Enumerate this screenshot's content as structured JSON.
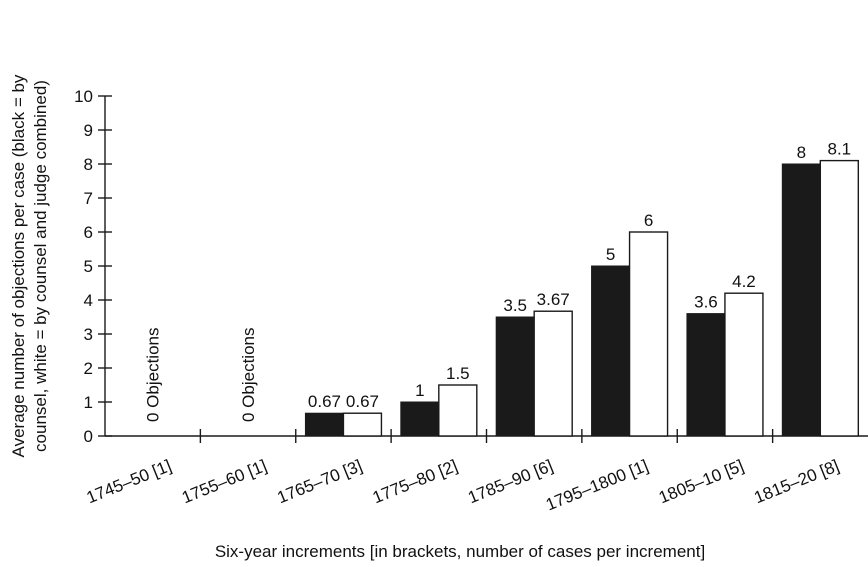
{
  "chart_data": {
    "type": "bar",
    "categories": [
      "1745–50 [1]",
      "1755–60 [1]",
      "1765–70 [3]",
      "1775–80 [2]",
      "1785–90 [6]",
      "1795–1800 [1]",
      "1805–10 [5]",
      "1815–20 [8]"
    ],
    "series": [
      {
        "values": [
          0,
          0,
          0.67,
          1,
          3.5,
          5,
          3.6,
          8
        ],
        "color": "#1a1a1a"
      },
      {
        "values": [
          0,
          0,
          0.67,
          1.5,
          3.67,
          6,
          4.2,
          8.1
        ],
        "color": "#ffffff"
      }
    ],
    "bar_labels": [
      [
        "",
        ""
      ],
      [
        "",
        ""
      ],
      [
        "0.67",
        "0.67"
      ],
      [
        "1",
        "1.5"
      ],
      [
        "3.5",
        "3.67"
      ],
      [
        "5",
        "6"
      ],
      [
        "3.6",
        "4.2"
      ],
      [
        "8",
        "8.1"
      ]
    ],
    "annotations": [
      {
        "category_index": 0,
        "text": "0 Objections"
      },
      {
        "category_index": 1,
        "text": "0 Objections"
      }
    ],
    "xlabel": "Six-year increments [in brackets, number of cases per increment]",
    "ylabel_line1": "Average number of objections per case (black = by",
    "ylabel_line2": "counsel, white = by counsel and judge combined)",
    "ylim": [
      0,
      10
    ],
    "yticks": [
      0,
      1,
      2,
      3,
      4,
      5,
      6,
      7,
      8,
      9,
      10
    ],
    "grid": false
  }
}
